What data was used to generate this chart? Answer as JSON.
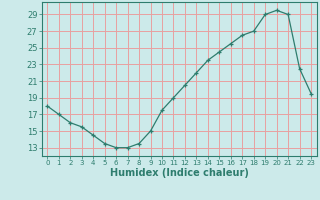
{
  "x": [
    0,
    1,
    2,
    3,
    4,
    5,
    6,
    7,
    8,
    9,
    10,
    11,
    12,
    13,
    14,
    15,
    16,
    17,
    18,
    19,
    20,
    21,
    22,
    23
  ],
  "y": [
    18,
    17,
    16,
    15.5,
    14.5,
    13.5,
    13,
    13,
    13.5,
    15,
    17.5,
    19,
    20.5,
    22,
    23.5,
    24.5,
    25.5,
    26.5,
    27,
    29,
    29.5,
    29,
    22.5,
    19.5
  ],
  "xlabel": "Humidex (Indice chaleur)",
  "bg_color": "#cceaea",
  "grid_color": "#e8a0a0",
  "line_color": "#2e7d6e",
  "marker_color": "#2e7d6e",
  "yticks": [
    13,
    15,
    17,
    19,
    21,
    23,
    25,
    27,
    29
  ],
  "xticks": [
    0,
    1,
    2,
    3,
    4,
    5,
    6,
    7,
    8,
    9,
    10,
    11,
    12,
    13,
    14,
    15,
    16,
    17,
    18,
    19,
    20,
    21,
    22,
    23
  ],
  "ylim": [
    12.0,
    30.5
  ],
  "xlim": [
    -0.5,
    23.5
  ],
  "tick_color": "#2e7d6e",
  "axis_color": "#2e7d6e",
  "xlabel_fontsize": 7,
  "ytick_fontsize": 6,
  "xtick_fontsize": 5
}
